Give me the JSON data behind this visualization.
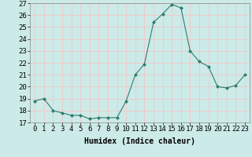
{
  "x": [
    0,
    1,
    2,
    3,
    4,
    5,
    6,
    7,
    8,
    9,
    10,
    11,
    12,
    13,
    14,
    15,
    16,
    17,
    18,
    19,
    20,
    21,
    22,
    23
  ],
  "y": [
    18.8,
    19.0,
    18.0,
    17.8,
    17.6,
    17.6,
    17.3,
    17.4,
    17.4,
    17.4,
    18.8,
    21.0,
    21.9,
    25.4,
    26.1,
    26.9,
    26.6,
    23.0,
    22.1,
    21.7,
    20.0,
    19.9,
    20.1,
    21.0
  ],
  "line_color": "#2d7d6e",
  "marker": "D",
  "marker_size": 2,
  "bg_color": "#cceae8",
  "grid_color": "#f0c8c8",
  "xlabel": "Humidex (Indice chaleur)",
  "ylim": [
    17,
    27
  ],
  "yticks": [
    17,
    18,
    19,
    20,
    21,
    22,
    23,
    24,
    25,
    26,
    27
  ],
  "xticks": [
    0,
    1,
    2,
    3,
    4,
    5,
    6,
    7,
    8,
    9,
    10,
    11,
    12,
    13,
    14,
    15,
    16,
    17,
    18,
    19,
    20,
    21,
    22,
    23
  ],
  "xlabel_fontsize": 7,
  "tick_fontsize": 6.5
}
